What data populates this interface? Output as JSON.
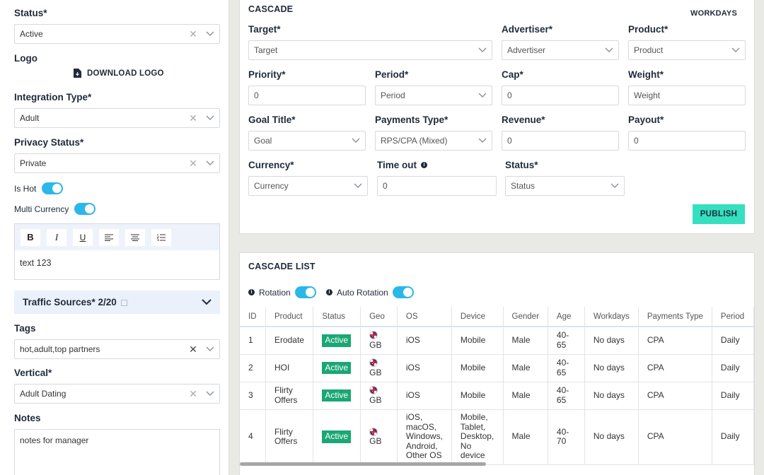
{
  "left": {
    "status": {
      "label": "Status*",
      "value": "Active"
    },
    "logo": {
      "label": "Logo",
      "download_label": "DOWNLOAD LOGO"
    },
    "integration_type": {
      "label": "Integration Type*",
      "value": "Adult"
    },
    "privacy_status": {
      "label": "Privacy Status*",
      "value": "Private"
    },
    "is_hot": {
      "label": "Is Hot"
    },
    "multi_currency": {
      "label": "Multi Currency"
    },
    "editor": {
      "bold": "B",
      "italic": "I",
      "underline": "U",
      "text": "text 123"
    },
    "traffic_sources": {
      "label": "Traffic Sources* 2/20"
    },
    "tags": {
      "label": "Tags",
      "value": "hot,adult,top partners"
    },
    "vertical": {
      "label": "Vertical*",
      "value": "Adult Dating"
    },
    "notes": {
      "label": "Notes",
      "value": "notes for manager"
    }
  },
  "cascade": {
    "title": "CASCADE",
    "workdays": "WORKDAYS",
    "target": {
      "label": "Target*",
      "placeholder": "Target"
    },
    "advertiser": {
      "label": "Advertiser*",
      "placeholder": "Advertiser"
    },
    "product": {
      "label": "Product*",
      "placeholder": "Product"
    },
    "priority": {
      "label": "Priority*",
      "value": "0"
    },
    "period": {
      "label": "Period*",
      "placeholder": "Period"
    },
    "cap": {
      "label": "Cap*",
      "value": "0"
    },
    "weight": {
      "label": "Weight*",
      "placeholder": "Weight"
    },
    "goal_title": {
      "label": "Goal Title*",
      "placeholder": "Goal"
    },
    "payments_type": {
      "label": "Payments Type*",
      "value": "RPS/CPA (Mixed)"
    },
    "revenue": {
      "label": "Revenue*",
      "value": "0"
    },
    "payout": {
      "label": "Payout*",
      "value": "0"
    },
    "currency": {
      "label": "Currency*",
      "placeholder": "Currency"
    },
    "time_out": {
      "label": "Time out",
      "value": "0"
    },
    "status": {
      "label": "Status*",
      "placeholder": "Status"
    },
    "publish_label": "PUBLISH"
  },
  "list": {
    "title": "CASCADE LIST",
    "rotation": "Rotation",
    "auto_rotation": "Auto Rotation",
    "columns": [
      "ID",
      "Product",
      "Status",
      "Geo",
      "OS",
      "Device",
      "Gender",
      "Age",
      "Workdays",
      "Payments Type",
      "Period"
    ],
    "rows": [
      {
        "id": "1",
        "product": "Erodate",
        "status": "Active",
        "geo": "GB",
        "os": "iOS",
        "device": "Mobile",
        "gender": "Male",
        "age": "40-65",
        "workdays": "No days",
        "payments_type": "CPA",
        "period": "Daily"
      },
      {
        "id": "2",
        "product": "HOI",
        "status": "Active",
        "geo": "GB",
        "os": "iOS",
        "device": "Mobile",
        "gender": "Male",
        "age": "40-65",
        "workdays": "No days",
        "payments_type": "CPA",
        "period": "Daily"
      },
      {
        "id": "3",
        "product": "Flirty Offers",
        "status": "Active",
        "geo": "GB",
        "os": "iOS",
        "device": "Mobile",
        "gender": "Male",
        "age": "40-65",
        "workdays": "No days",
        "payments_type": "CPA",
        "period": "Daily"
      },
      {
        "id": "4",
        "product": "Flirty Offers",
        "status": "Active",
        "geo": "GB",
        "os": "iOS, macOS, Windows, Android, Other OS",
        "device": "Mobile, Tablet, Desktop, No device",
        "gender": "Male",
        "age": "40-70",
        "workdays": "No days",
        "payments_type": "CPA",
        "period": "Daily"
      }
    ]
  },
  "colors": {
    "toggle": "#29b8e8",
    "publish": "#35e0c0",
    "active_badge": "#1aa774"
  }
}
